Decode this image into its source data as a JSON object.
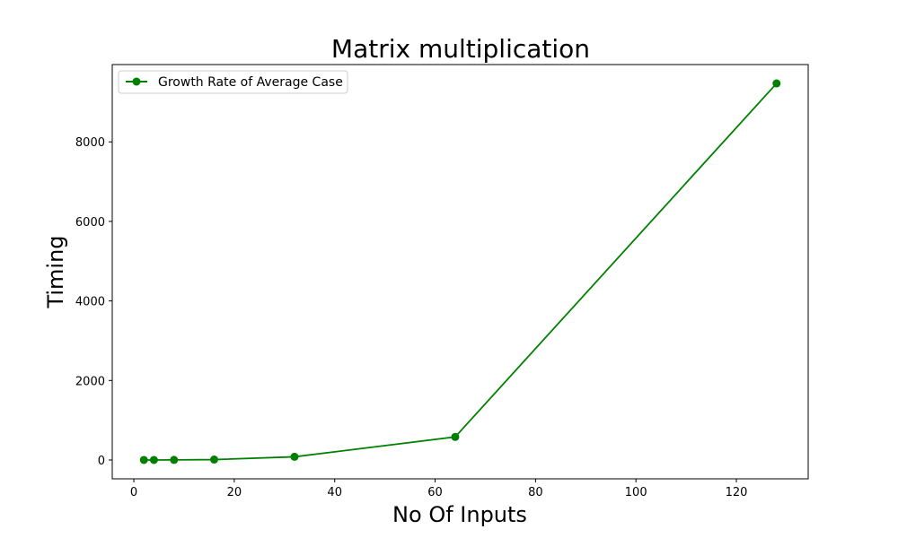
{
  "chart_data": {
    "type": "line",
    "title": "Matrix multiplication",
    "xlabel": "No Of Inputs",
    "ylabel": "Timing",
    "xlim": [
      -4.3,
      134.3
    ],
    "ylim": [
      -474,
      9945
    ],
    "xticks": [
      0,
      20,
      40,
      60,
      80,
      100,
      120
    ],
    "yticks": [
      0,
      2000,
      4000,
      6000,
      8000
    ],
    "grid": false,
    "legend_position": "top-left",
    "series": [
      {
        "name": "Growth Rate of Average Case",
        "color": "#008000",
        "marker": "circle",
        "x": [
          2,
          4,
          8,
          16,
          32,
          64,
          128
        ],
        "y": [
          0,
          0,
          2,
          10,
          80,
          580,
          9470
        ]
      }
    ]
  }
}
